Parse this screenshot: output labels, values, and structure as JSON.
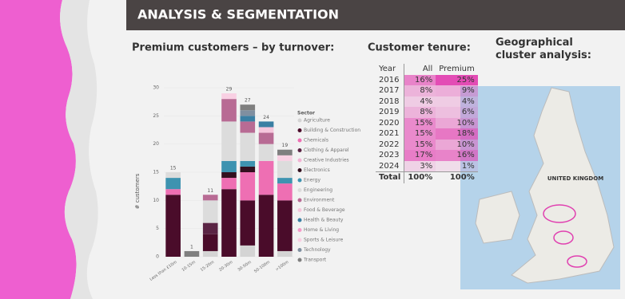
{
  "header": {
    "title": "ANALYSIS & SEGMENTATION"
  },
  "chart_data": {
    "type": "stacked-bar",
    "title": "Premium customers – by turnover:",
    "y_label": "# customers",
    "categories": [
      "Less than £10m",
      "10-15m",
      "15-20m",
      "20-30m",
      "30-50m",
      "50-100m",
      ">100m"
    ],
    "ylim": [
      0,
      30
    ],
    "yticks": [
      0,
      5,
      10,
      15,
      20,
      25,
      30
    ],
    "legend_title": "Sector",
    "series": [
      {
        "name": "Agriculture",
        "color": "#d4d4d4",
        "values": [
          0,
          0,
          1,
          0,
          2,
          0,
          1
        ]
      },
      {
        "name": "Building & Construction",
        "color": "#4a0c2a",
        "values": [
          11,
          0,
          3,
          12,
          8,
          11,
          9
        ]
      },
      {
        "name": "Chemicals",
        "color": "#ee6fb3",
        "values": [
          1,
          0,
          0,
          2,
          5,
          6,
          3
        ]
      },
      {
        "name": "Clothing & Apparel",
        "color": "#5a2444",
        "values": [
          0,
          0,
          2,
          0,
          0,
          0,
          0
        ]
      },
      {
        "name": "Creative Industries",
        "color": "#f3b3d4",
        "values": [
          0,
          0,
          0,
          0,
          0,
          0,
          0
        ]
      },
      {
        "name": "Electronics",
        "color": "#33101f",
        "values": [
          0,
          0,
          0,
          1,
          1,
          0,
          0
        ]
      },
      {
        "name": "Energy",
        "color": "#3e93b0",
        "values": [
          2,
          0,
          0,
          2,
          1,
          0,
          1
        ]
      },
      {
        "name": "Engineering",
        "color": "#dcdcdc",
        "values": [
          1,
          0,
          4,
          7,
          5,
          3,
          3
        ]
      },
      {
        "name": "Environment",
        "color": "#b86b94",
        "values": [
          0,
          0,
          1,
          4,
          2,
          2,
          0
        ]
      },
      {
        "name": "Food & Beverage",
        "color": "#f5c6dc",
        "values": [
          0,
          0,
          0,
          0,
          0,
          1,
          0
        ]
      },
      {
        "name": "Health & Beauty",
        "color": "#3a7fa3",
        "values": [
          0,
          0,
          0,
          0,
          1,
          1,
          0
        ]
      },
      {
        "name": "Home & Living",
        "color": "#f59bc9",
        "values": [
          0,
          0,
          0,
          0,
          0,
          0,
          0
        ]
      },
      {
        "name": "Sports & Leisure",
        "color": "#f9d0e3",
        "values": [
          0,
          0,
          0,
          1,
          0,
          0,
          1
        ]
      },
      {
        "name": "Technology",
        "color": "#7f8fa0",
        "values": [
          0,
          0,
          0,
          0,
          1,
          0,
          0
        ]
      },
      {
        "name": "Transport",
        "color": "#7f7f7f",
        "values": [
          0,
          1,
          0,
          0,
          1,
          0,
          1
        ]
      }
    ],
    "totals": [
      15,
      1,
      11,
      29,
      27,
      24,
      19
    ]
  },
  "table": {
    "title": "Customer tenure:",
    "columns": [
      "Year",
      "All",
      "Premium"
    ],
    "rows": [
      [
        "2016",
        "16%",
        "25%"
      ],
      [
        "2017",
        "8%",
        "9%"
      ],
      [
        "2018",
        "4%",
        "4%"
      ],
      [
        "2019",
        "8%",
        "6%"
      ],
      [
        "2020",
        "15%",
        "10%"
      ],
      [
        "2021",
        "15%",
        "18%"
      ],
      [
        "2022",
        "15%",
        "10%"
      ],
      [
        "2023",
        "17%",
        "16%"
      ],
      [
        "2024",
        "3%",
        "1%"
      ],
      [
        "Total",
        "100%",
        "100%"
      ]
    ]
  },
  "map": {
    "title": "Geographical cluster analysis:",
    "country_label": "UNITED KINGDOM"
  }
}
